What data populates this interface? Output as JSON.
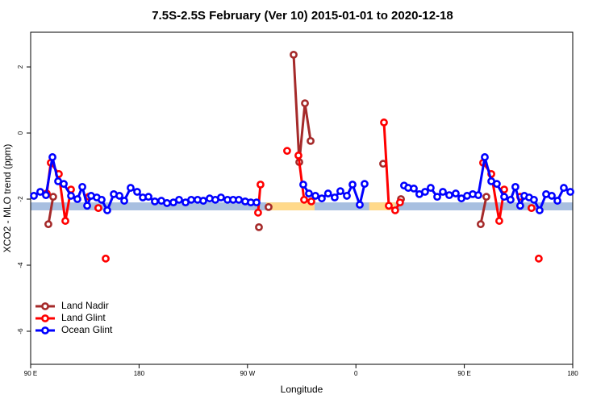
{
  "chart_data": {
    "type": "scatter-line",
    "title": "7.5S-2.5S February (Ver 10)   2015-01-01 to 2020-12-18",
    "x_label": "Longitude",
    "y_label": "XCO2 - MLO trend (ppm)",
    "xlim": [
      90,
      540
    ],
    "ylim": [
      -7,
      3.05
    ],
    "xticks": [
      {
        "value": 90,
        "label": "90 E"
      },
      180,
      {
        "value": 270,
        "label": "90 W"
      },
      0,
      {
        "value": 450,
        "label": "90 E"
      },
      {
        "value": 540,
        "label": "180"
      }
    ],
    "yticks": [
      -6,
      -4,
      -2,
      0,
      2
    ],
    "legend": "bottom-left",
    "band": {
      "ymin": -2.34,
      "ymax": -2.1,
      "color": "#a8bfe0",
      "highlight_color": "#ffd98a",
      "highlight_x": [
        [
          285.5,
          325.7
        ],
        [
          371,
          393
        ]
      ]
    },
    "series": [
      {
        "name": "Land Nadir",
        "color": "#a52a2a",
        "x": [
          104.7,
          108.7,
          null,
          146.2,
          null,
          279.5,
          null,
          287.5,
          null,
          308.3,
          313.0,
          317.7,
          322.4,
          null,
          382.6,
          null,
          397.4,
          null,
          463.6,
          468.3,
          null,
          505.8
        ],
        "values": [
          -2.76,
          -1.93,
          null,
          -2.27,
          null,
          -2.85,
          null,
          -2.24,
          null,
          2.37,
          -0.88,
          0.9,
          -0.24,
          null,
          -0.93,
          null,
          -2.0,
          null,
          -2.76,
          -1.93,
          null,
          -2.27
        ]
      },
      {
        "name": "Land Glint",
        "color": "#ff0000",
        "x": [
          103.4,
          106.7,
          113.4,
          118.8,
          123.5,
          null,
          138.2,
          null,
          146.2,
          null,
          152.3,
          null,
          278.8,
          280.8,
          null,
          302.9,
          null,
          312.3,
          317.0,
          323.0,
          null,
          383.3,
          387.3,
          392.6,
          396.6,
          null,
          465.6,
          472.4,
          479.0,
          483.1,
          null,
          496.4,
          null,
          505.8,
          null,
          511.8
        ],
        "values": [
          -1.83,
          -0.9,
          -1.24,
          -2.66,
          -1.71,
          null,
          -1.93,
          null,
          -2.27,
          null,
          -3.8,
          null,
          -2.41,
          -1.56,
          null,
          -0.54,
          null,
          -0.68,
          -2.02,
          -2.07,
          null,
          0.32,
          -2.2,
          -2.34,
          -2.1,
          null,
          -0.9,
          -1.24,
          -2.66,
          -1.71,
          null,
          -1.93,
          null,
          -2.27,
          null,
          -3.8
        ]
      },
      {
        "name": "Ocean Glint",
        "color": "#0000ff",
        "x": [
          92.7,
          98.0,
          102.7,
          108.1,
          112.8,
          117.5,
          123.5,
          128.8,
          132.9,
          136.9,
          140.2,
          144.9,
          148.9,
          153.6,
          159.0,
          163.7,
          167.7,
          173.0,
          178.4,
          183.1,
          187.8,
          193.1,
          198.5,
          203.2,
          208.5,
          213.2,
          218.6,
          223.3,
          228.6,
          233.3,
          238.6,
          243.3,
          248.0,
          253.4,
          258.1,
          262.8,
          268.1,
          272.8,
          277.5,
          null,
          316.3,
          321.0,
          326.4,
          331.7,
          336.9,
          342.4,
          347.1,
          352.5,
          357.2,
          363.2,
          367.2,
          null,
          400.0,
          403.4,
          408.1,
          412.7,
          417.4,
          422.1,
          427.5,
          432.2,
          437.5,
          442.9,
          447.6,
          452.3,
          457.0,
          461.6,
          467.0,
          472.4,
          477.0,
          483.1,
          488.4,
          492.4,
          496.4,
          499.8,
          503.8,
          507.8,
          512.5,
          517.9,
          522.6,
          527.3,
          532.6,
          538.0
        ],
        "values": [
          -1.9,
          -1.78,
          -1.88,
          -0.73,
          -1.46,
          -1.54,
          -1.9,
          -2.0,
          -1.63,
          -2.2,
          -1.9,
          -1.95,
          -2.02,
          -2.34,
          -1.85,
          -1.9,
          -2.05,
          -1.66,
          -1.78,
          -1.95,
          -1.93,
          -2.07,
          -2.05,
          -2.12,
          -2.1,
          -2.02,
          -2.1,
          -2.02,
          -2.02,
          -2.05,
          -1.98,
          -2.02,
          -1.95,
          -2.02,
          -2.02,
          -2.02,
          -2.07,
          -2.1,
          -2.1,
          null,
          -1.56,
          -1.83,
          -1.9,
          -1.98,
          -1.83,
          -1.95,
          -1.76,
          -1.9,
          -1.56,
          -2.17,
          -1.54,
          null,
          -1.59,
          -1.66,
          -1.68,
          -1.85,
          -1.78,
          -1.66,
          -1.93,
          -1.78,
          -1.88,
          -1.83,
          -1.98,
          -1.9,
          -1.85,
          -1.88,
          -0.73,
          -1.46,
          -1.54,
          -1.93,
          -2.02,
          -1.63,
          -2.2,
          -1.9,
          -1.95,
          -2.02,
          -2.34,
          -1.85,
          -1.9,
          -2.05,
          -1.66,
          -1.78
        ]
      }
    ]
  }
}
